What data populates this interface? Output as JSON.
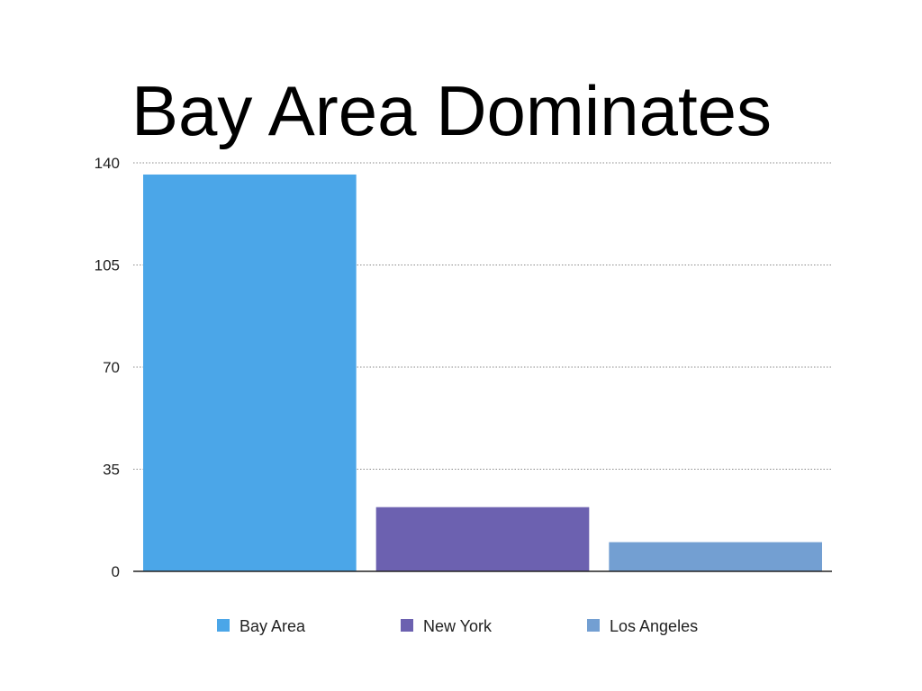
{
  "slide": {
    "title": "Bay Area Dominates"
  },
  "chart_data": {
    "type": "bar",
    "title": "Bay Area Dominates",
    "categories": [
      "Bay Area",
      "New York",
      "Los Angeles"
    ],
    "values": [
      136,
      22,
      10
    ],
    "colors": [
      "#4ba6e8",
      "#6c61b0",
      "#739fd2"
    ],
    "ylim": [
      0,
      140
    ],
    "yticks": [
      0,
      35,
      70,
      105,
      140
    ],
    "grid": true,
    "legend": "bottom"
  }
}
